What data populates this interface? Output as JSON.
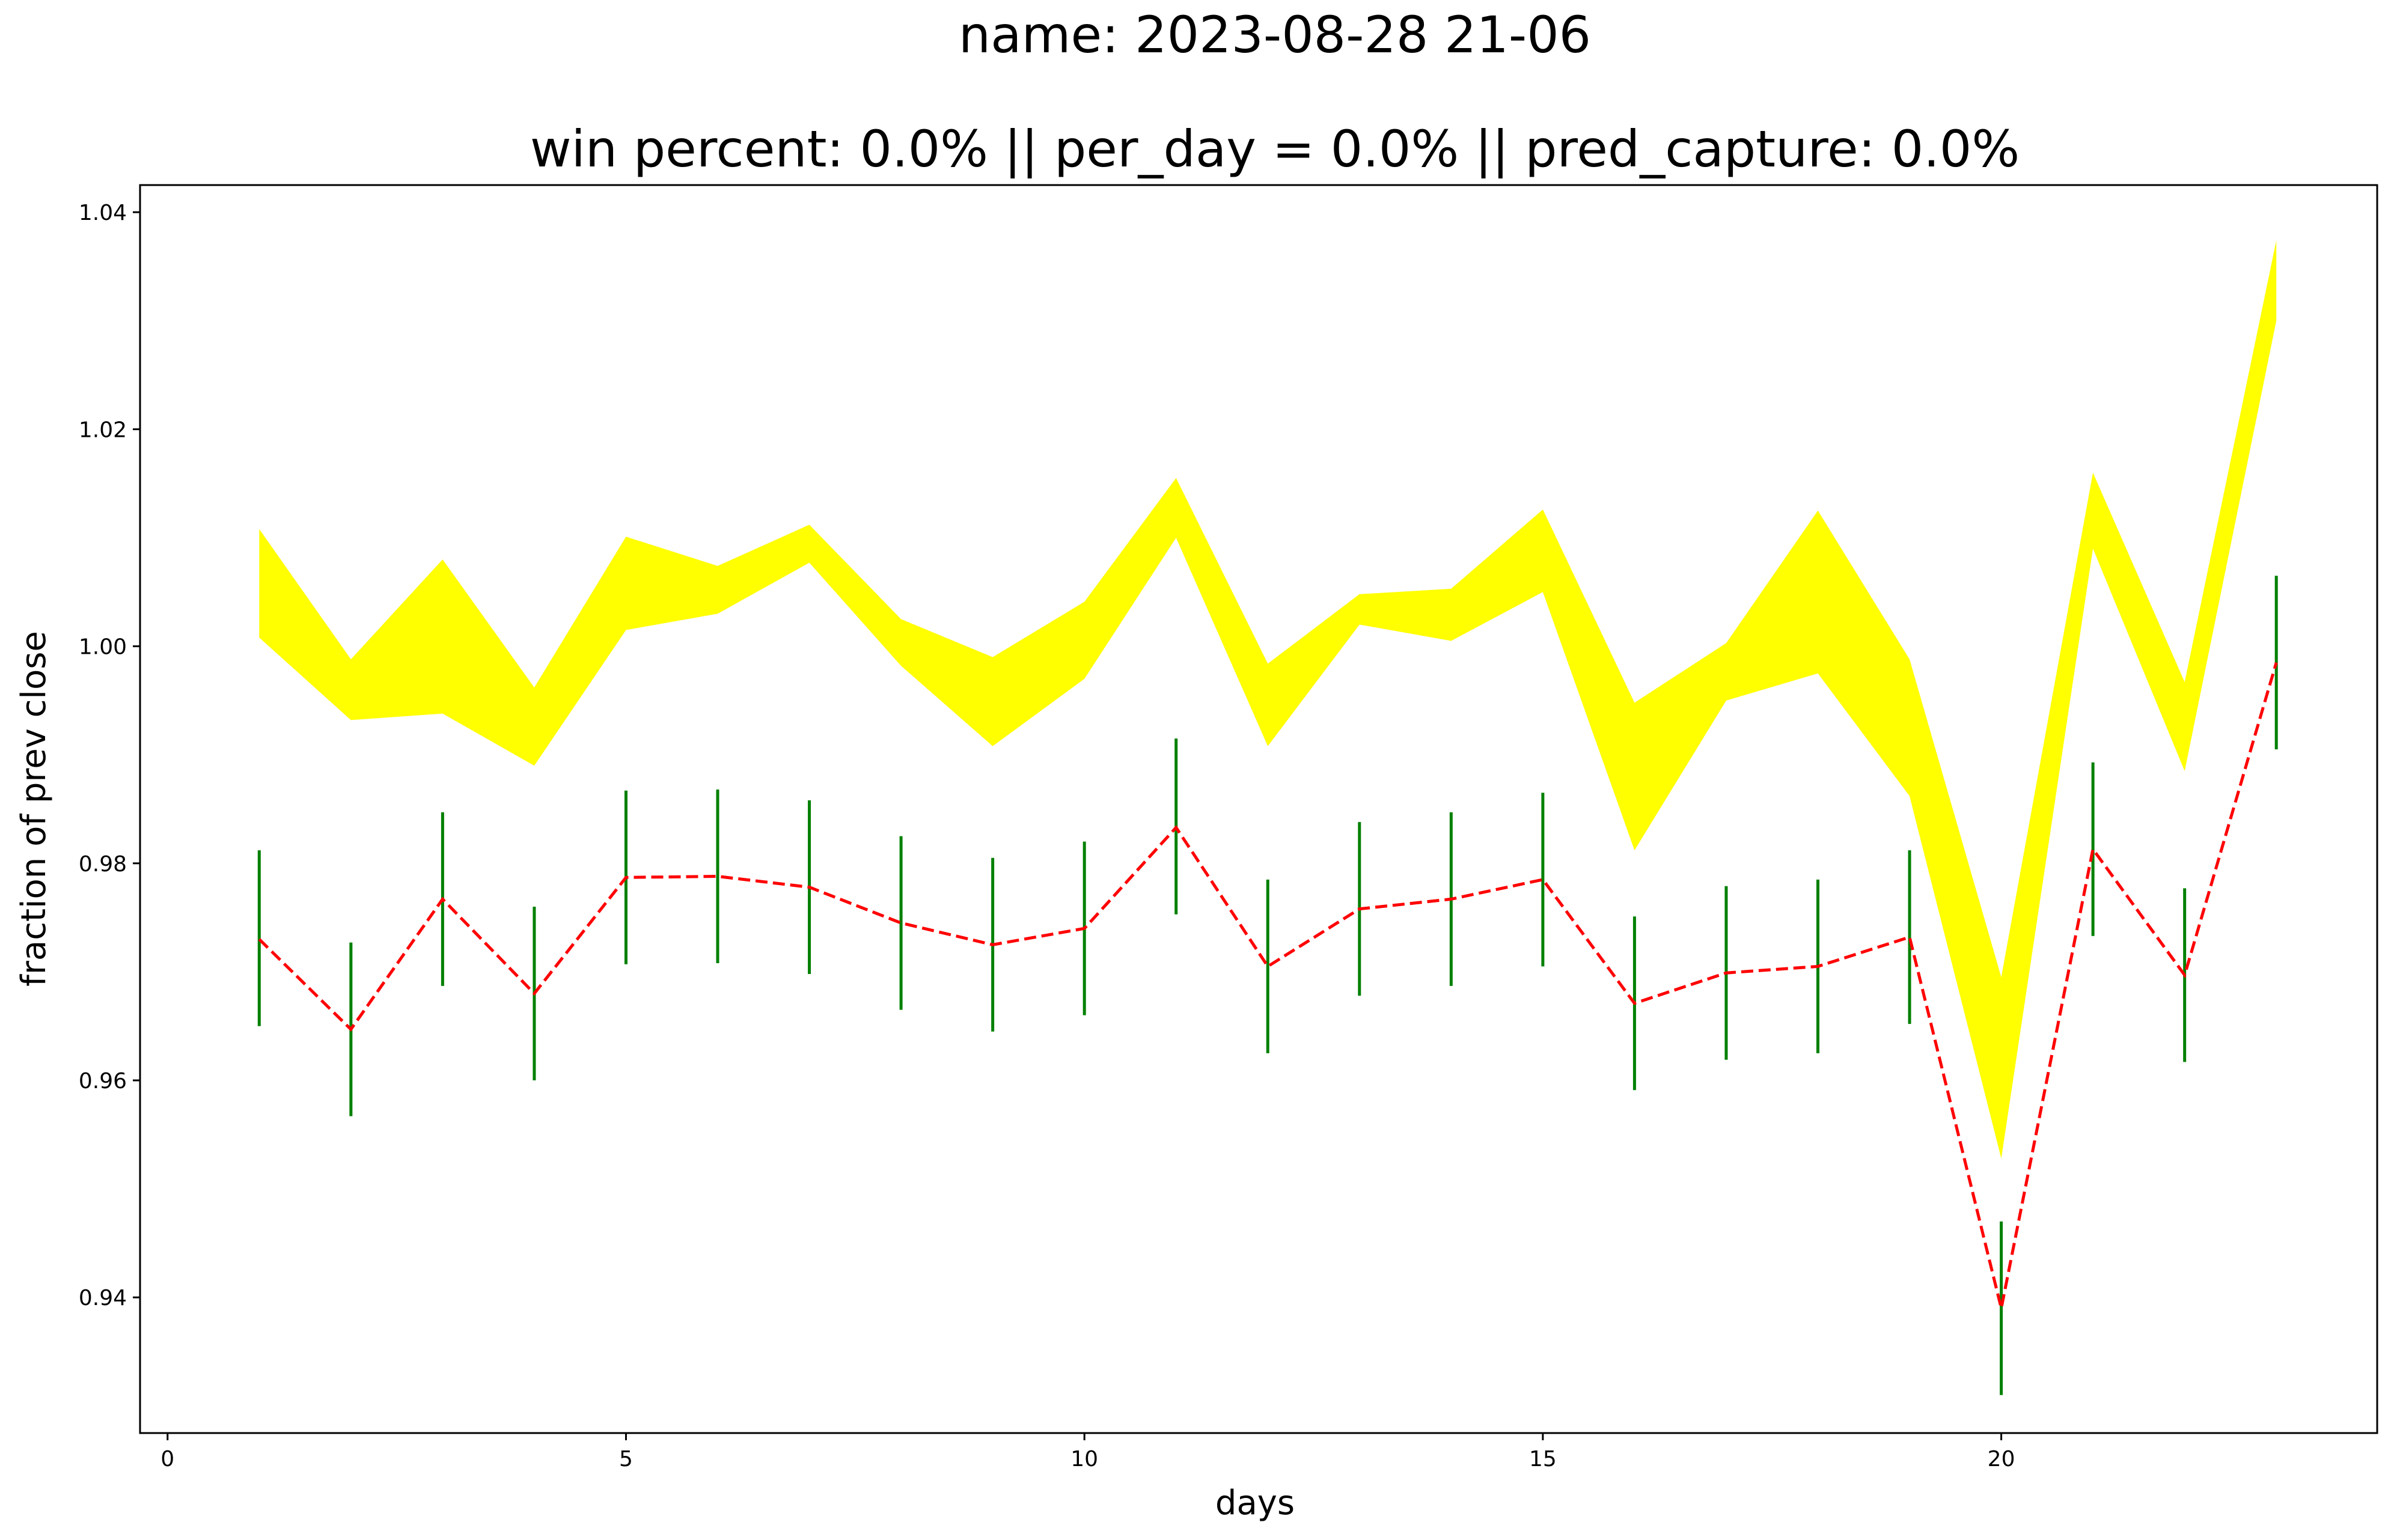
{
  "chart_data": {
    "type": "line",
    "title": "name: 2023-08-28 21-06",
    "subtitle": "win percent: 0.0%  || per_day = 0.0% || pred_capture: 0.0%",
    "xlabel": "days",
    "ylabel": "fraction of prev close",
    "xlim": [
      -0.3,
      24.1
    ],
    "ylim": [
      0.9275,
      1.0425
    ],
    "xticks": [
      0,
      5,
      10,
      15,
      20
    ],
    "xtick_labels": [
      "0",
      "5",
      "10",
      "15",
      "20"
    ],
    "yticks": [
      0.94,
      0.96,
      0.98,
      1.0,
      1.02,
      1.04
    ],
    "ytick_labels": [
      "0.94",
      "0.96",
      "0.98",
      "1.00",
      "1.02",
      "1.04"
    ],
    "grid": false,
    "x": [
      1,
      2,
      3,
      4,
      5,
      6,
      7,
      8,
      9,
      10,
      11,
      12,
      13,
      14,
      15,
      16,
      17,
      18,
      19,
      20,
      21,
      22,
      23
    ],
    "band": {
      "color": "#ffff00",
      "upper": [
        1.0108,
        0.9988,
        1.008,
        0.9962,
        1.0101,
        1.0074,
        1.0112,
        1.0025,
        0.999,
        1.0041,
        1.0155,
        0.9984,
        1.0048,
        1.0053,
        1.0126,
        0.9948,
        1.0003,
        1.0125,
        0.9988,
        0.9695,
        1.016,
        0.9967,
        1.0374
      ],
      "lower": [
        1.0008,
        0.9932,
        0.9938,
        0.989,
        1.0015,
        1.003,
        1.0077,
        0.9982,
        0.9908,
        0.997,
        1.01,
        0.9908,
        1.002,
        1.0005,
        1.005,
        0.9812,
        0.995,
        0.9975,
        0.9862,
        0.9528,
        1.009,
        0.9885,
        1.03
      ]
    },
    "series": [
      {
        "style": "dashed",
        "color": "#ff0000",
        "values": [
          0.973,
          0.9647,
          0.9767,
          0.968,
          0.9787,
          0.9788,
          0.9778,
          0.9745,
          0.9725,
          0.974,
          0.9833,
          0.9705,
          0.9758,
          0.9767,
          0.9785,
          0.9671,
          0.9699,
          0.9705,
          0.9732,
          0.939,
          0.9813,
          0.9697,
          0.9985
        ]
      }
    ],
    "error_bars": {
      "color": "#008000",
      "low": [
        0.965,
        0.9567,
        0.9687,
        0.96,
        0.9707,
        0.9708,
        0.9698,
        0.9665,
        0.9645,
        0.966,
        0.9753,
        0.9625,
        0.9678,
        0.9687,
        0.9705,
        0.9591,
        0.9619,
        0.9625,
        0.9652,
        0.931,
        0.9733,
        0.9617,
        0.9905
      ],
      "high": [
        0.9812,
        0.9727,
        0.9847,
        0.976,
        0.9867,
        0.9868,
        0.9858,
        0.9825,
        0.9805,
        0.982,
        0.9915,
        0.9785,
        0.9838,
        0.9847,
        0.9865,
        0.9751,
        0.9779,
        0.9785,
        0.9812,
        0.947,
        0.9893,
        0.9777,
        1.0065
      ]
    }
  }
}
